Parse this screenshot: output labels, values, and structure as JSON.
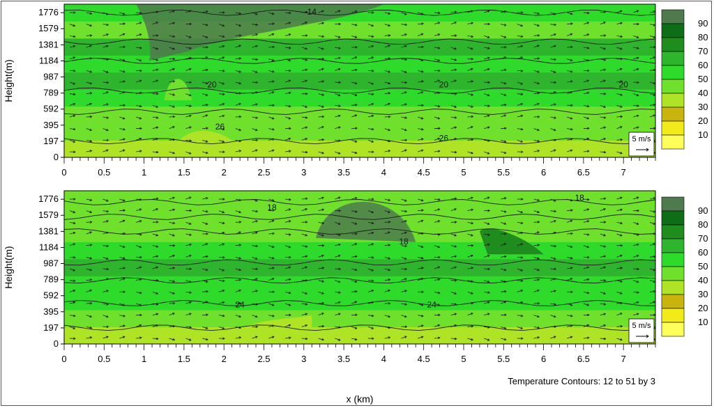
{
  "chart_data": [
    {
      "type": "heatmap",
      "panel": "top",
      "ylabel": "Height(m)",
      "xlim": [
        0,
        7.4
      ],
      "ylim": [
        0,
        1880
      ],
      "x_ticks": [
        0,
        0.5,
        1,
        1.5,
        2,
        2.5,
        3,
        3.5,
        4,
        4.5,
        5,
        5.5,
        6,
        6.5,
        7
      ],
      "x_tick_labels": [
        "0",
        "0.5",
        "1",
        "1.5",
        "2",
        "2.5",
        "3",
        "3.5",
        "4",
        "4.5",
        "5",
        "5.5",
        "6",
        "6.5",
        "7"
      ],
      "y_ticks": [
        0,
        197,
        395,
        592,
        789,
        987,
        1184,
        1381,
        1579,
        1776
      ],
      "y_tick_labels": [
        "0",
        "197",
        "395",
        "592",
        "789",
        "987",
        "1184",
        "1381",
        "1579",
        "1776"
      ],
      "fill_levels_bottom_to_top": [
        40,
        50,
        50,
        60,
        70,
        60,
        70,
        50,
        60
      ],
      "contour_labels": [
        {
          "x": 3.1,
          "y": 1750,
          "text": "14"
        },
        {
          "x": 1.85,
          "y": 860,
          "text": "20"
        },
        {
          "x": 4.75,
          "y": 860,
          "text": "20"
        },
        {
          "x": 7.0,
          "y": 860,
          "text": "20"
        },
        {
          "x": 1.95,
          "y": 340,
          "text": "26"
        },
        {
          "x": 4.75,
          "y": 200,
          "text": "26"
        }
      ],
      "wind_reference": "5 m/s"
    },
    {
      "type": "heatmap",
      "panel": "bottom",
      "ylabel": "Height(m)",
      "xlabel": "x (km)",
      "xlim": [
        0,
        7.4
      ],
      "ylim": [
        0,
        1880
      ],
      "x_ticks": [
        0,
        0.5,
        1,
        1.5,
        2,
        2.5,
        3,
        3.5,
        4,
        4.5,
        5,
        5.5,
        6,
        6.5,
        7
      ],
      "x_tick_labels": [
        "0",
        "0.5",
        "1",
        "1.5",
        "2",
        "2.5",
        "3",
        "3.5",
        "4",
        "4.5",
        "5",
        "5.5",
        "6",
        "6.5",
        "7"
      ],
      "y_ticks": [
        0,
        197,
        395,
        592,
        789,
        987,
        1184,
        1381,
        1579,
        1776
      ],
      "y_tick_labels": [
        "0",
        "197",
        "395",
        "592",
        "789",
        "987",
        "1184",
        "1381",
        "1579",
        "1776"
      ],
      "fill_levels_bottom_to_top": [
        40,
        50,
        60,
        60,
        70,
        60,
        50,
        50,
        50
      ],
      "contour_labels": [
        {
          "x": 2.6,
          "y": 1640,
          "text": "18"
        },
        {
          "x": 4.25,
          "y": 1220,
          "text": "18"
        },
        {
          "x": 6.45,
          "y": 1760,
          "text": "18"
        },
        {
          "x": 2.2,
          "y": 450,
          "text": "24"
        },
        {
          "x": 4.6,
          "y": 450,
          "text": "24"
        }
      ],
      "wind_reference": "5 m/s",
      "footnote": "Temperature Contours: 12 to 51 by 3"
    }
  ],
  "colorbar": {
    "labels": [
      "90",
      "80",
      "70",
      "60",
      "50",
      "40",
      "30",
      "20",
      "10"
    ],
    "colors": [
      "#4e7a4e",
      "#0e6e17",
      "#1f8c1e",
      "#2fb52d",
      "#2fdb2a",
      "#6fe12c",
      "#aee425",
      "#c9b40e",
      "#f2ea19",
      "#ffff5c"
    ]
  }
}
